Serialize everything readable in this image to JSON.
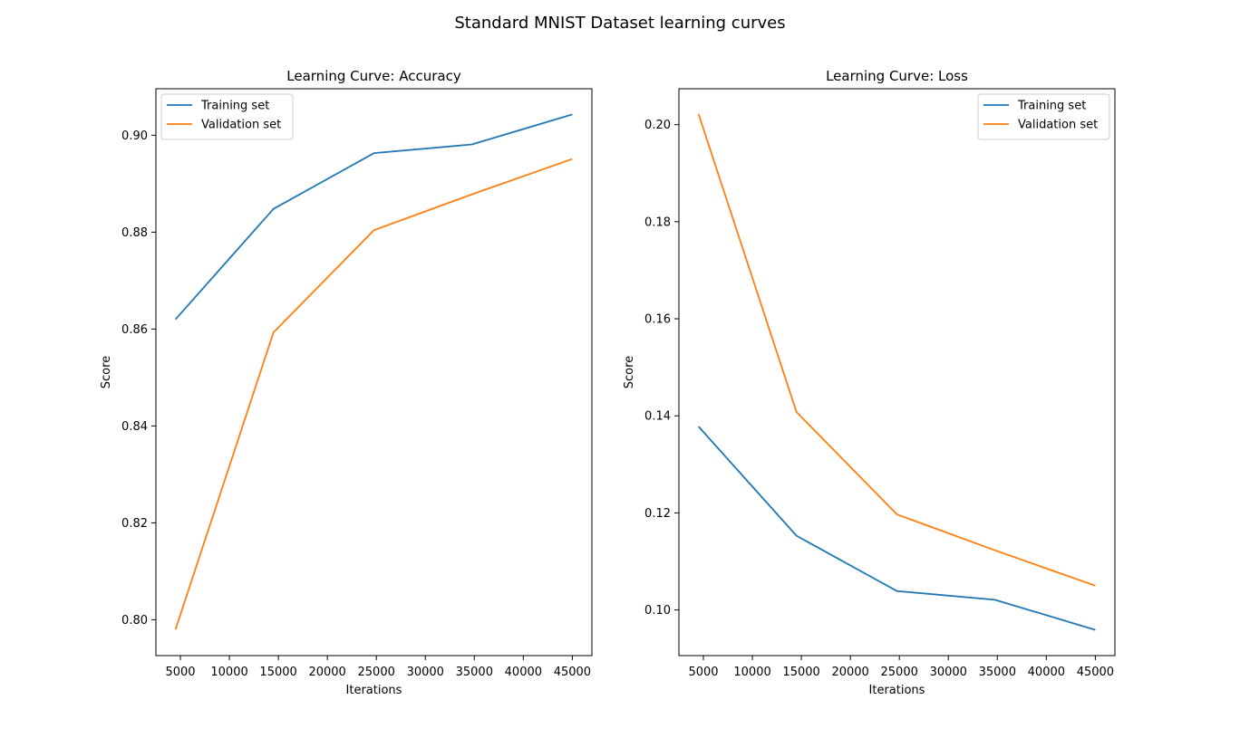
{
  "figure_title": "Standard MNIST Dataset learning curves",
  "colors": {
    "training": "#1f77b4",
    "validation": "#ff7f0e",
    "axes": "#000000",
    "legend_border": "#cccccc",
    "background": "#ffffff"
  },
  "chart_data": [
    {
      "type": "line",
      "title": "Learning Curve: Accuracy",
      "xlabel": "Iterations",
      "ylabel": "Score",
      "x": [
        4500,
        14500,
        24750,
        34750,
        45000
      ],
      "series": [
        {
          "name": "Training set",
          "color": "#1f77b4",
          "values": [
            0.862,
            0.8848,
            0.8963,
            0.8981,
            0.9043
          ]
        },
        {
          "name": "Validation set",
          "color": "#ff7f0e",
          "values": [
            0.798,
            0.8593,
            0.8804,
            0.8878,
            0.8951
          ]
        }
      ],
      "xlim": [
        2500,
        47000
      ],
      "ylim": [
        0.7926,
        0.9096
      ],
      "xticks": [
        5000,
        10000,
        15000,
        20000,
        25000,
        30000,
        35000,
        40000,
        45000
      ],
      "yticks": [
        0.8,
        0.82,
        0.84,
        0.86,
        0.88,
        0.9
      ],
      "ytick_labels": [
        "0.80",
        "0.82",
        "0.84",
        "0.86",
        "0.88",
        "0.90"
      ],
      "grid": false,
      "legend_position": "upper left"
    },
    {
      "type": "line",
      "title": "Learning Curve: Loss",
      "xlabel": "Iterations",
      "ylabel": "Score",
      "x": [
        4500,
        14500,
        24750,
        34750,
        45000
      ],
      "series": [
        {
          "name": "Training set",
          "color": "#1f77b4",
          "values": [
            0.1378,
            0.1153,
            0.1039,
            0.1021,
            0.0959
          ]
        },
        {
          "name": "Validation set",
          "color": "#ff7f0e",
          "values": [
            0.2022,
            0.1408,
            0.1197,
            0.1123,
            0.105
          ]
        }
      ],
      "xlim": [
        2500,
        47000
      ],
      "ylim": [
        0.0906,
        0.2074
      ],
      "xticks": [
        5000,
        10000,
        15000,
        20000,
        25000,
        30000,
        35000,
        40000,
        45000
      ],
      "yticks": [
        0.1,
        0.12,
        0.14,
        0.16,
        0.18,
        0.2
      ],
      "ytick_labels": [
        "0.10",
        "0.12",
        "0.14",
        "0.16",
        "0.18",
        "0.20"
      ],
      "grid": false,
      "legend_position": "upper right"
    }
  ]
}
